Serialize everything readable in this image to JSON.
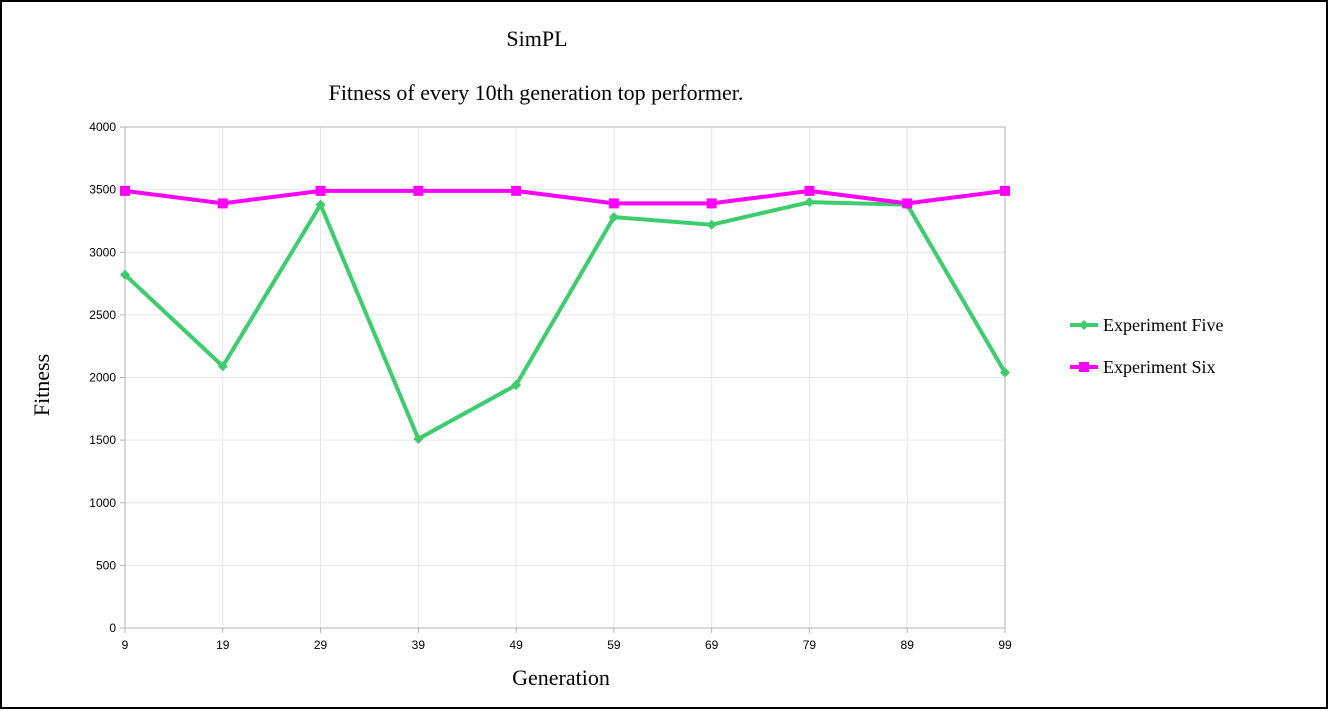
{
  "chart_data": {
    "type": "line",
    "title": "SimPL",
    "subtitle": "Fitness of every 10th generation top performer.",
    "xlabel": "Generation",
    "ylabel": "Fitness",
    "categories": [
      "9",
      "19",
      "29",
      "39",
      "49",
      "59",
      "69",
      "79",
      "89",
      "99"
    ],
    "ylim": [
      0,
      4000
    ],
    "yticks": [
      0,
      500,
      1000,
      1500,
      2000,
      2500,
      3000,
      3500,
      4000
    ],
    "grid": true,
    "legend_position": "right",
    "series": [
      {
        "name": "Experiment Five",
        "color": "#3dcc6e",
        "marker": "diamond",
        "values": [
          2820,
          2090,
          3380,
          1510,
          1940,
          3280,
          3220,
          3400,
          3380,
          2040
        ]
      },
      {
        "name": "Experiment Six",
        "color": "#ff00ff",
        "marker": "square",
        "values": [
          3490,
          3390,
          3490,
          3490,
          3490,
          3390,
          3390,
          3490,
          3390,
          3490
        ]
      }
    ]
  }
}
